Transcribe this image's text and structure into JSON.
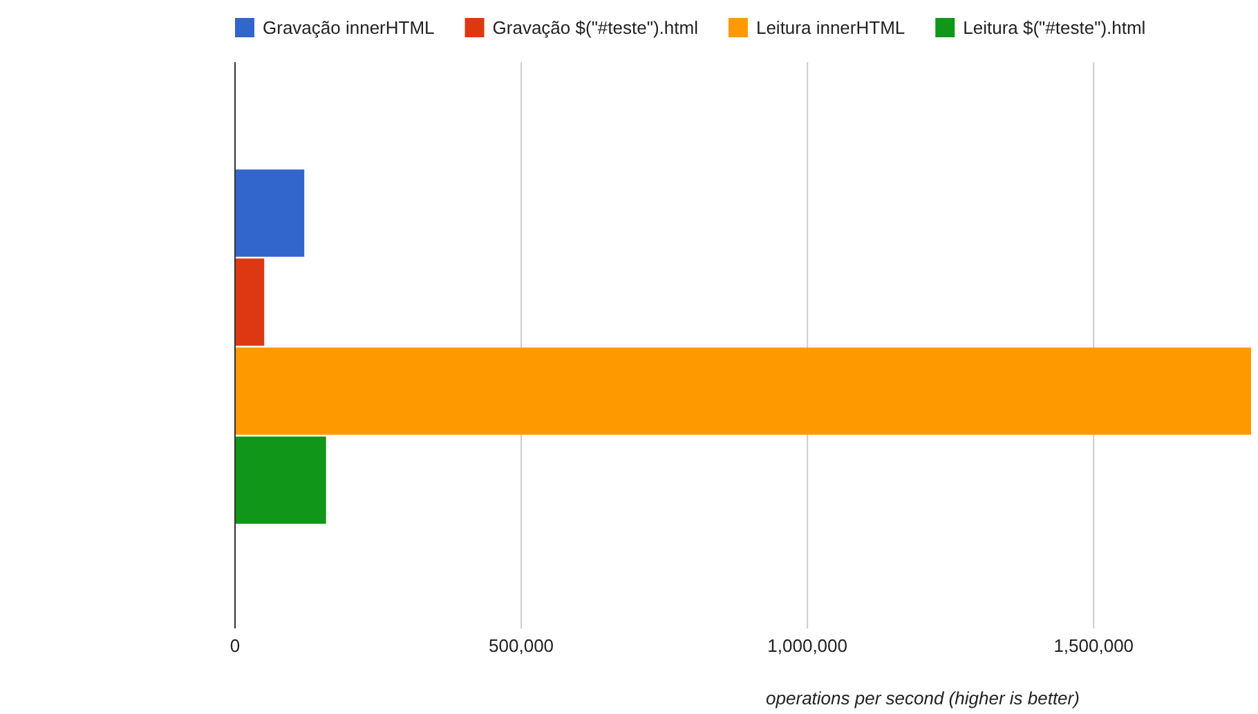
{
  "chart_data": {
    "type": "bar",
    "orientation": "horizontal",
    "xlabel": "operations per second (higher is better)",
    "categories": [
      null
    ],
    "series": [
      {
        "name": "Gravação innerHTML",
        "color": "#3366cc",
        "values": [
          121000
        ]
      },
      {
        "name": "Gravação $(\"#teste\").html",
        "color": "#dc3912",
        "values": [
          51000
        ]
      },
      {
        "name": "Leitura innerHTML",
        "color": "#ff9900",
        "values": [
          1775000
        ]
      },
      {
        "name": "Leitura $(\"#teste\").html",
        "color": "#109618",
        "values": [
          159000
        ]
      }
    ],
    "xlim": [
      0,
      1775000
    ],
    "xticks": [
      {
        "value": 0,
        "label": "0"
      },
      {
        "value": 500000,
        "label": "500,000"
      },
      {
        "value": 1000000,
        "label": "1,000,000"
      },
      {
        "value": 1500000,
        "label": "1,500,000"
      }
    ],
    "grid": "x",
    "legend": "top"
  }
}
